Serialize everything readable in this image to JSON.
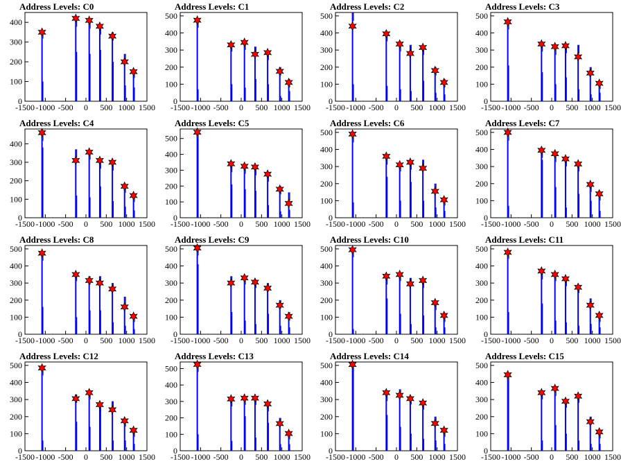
{
  "figure": {
    "x_ticks": [
      -1500,
      -1000,
      -500,
      0,
      500,
      1000,
      1500
    ],
    "x_tick_labels": [
      "-1500",
      "-1000",
      "-500",
      "0",
      "500",
      "1000",
      "1500"
    ],
    "colors": {
      "bars": "#0000ff",
      "markers": "#ff0000",
      "marker_edge": "#000000",
      "axes": "#000000"
    }
  },
  "chart_data": [
    {
      "type": "bar",
      "title": "Address Levels: C0",
      "xlim": [
        -1500,
        1500
      ],
      "ylim": [
        0,
        450
      ],
      "y_ticks": [
        0,
        100,
        200,
        300,
        400
      ],
      "peaks": {
        "x": [
          -1080,
          -250,
          80,
          340,
          650,
          950,
          1170
        ],
        "y": [
          350,
          420,
          410,
          380,
          330,
          200,
          150
        ]
      },
      "histogram": {
        "x": [
          -1080,
          -250,
          80,
          340,
          650,
          950,
          1170
        ],
        "y": [
          360,
          420,
          410,
          380,
          350,
          240,
          160
        ]
      },
      "minor_bars": {
        "x": [
          -1060,
          -230,
          100,
          360,
          670,
          970,
          1190
        ],
        "y": [
          100,
          250,
          240,
          260,
          200,
          80,
          70
        ]
      }
    },
    {
      "type": "bar",
      "title": "Address Levels: C1",
      "xlim": [
        -1500,
        1500
      ],
      "ylim": [
        0,
        520
      ],
      "y_ticks": [
        0,
        100,
        200,
        300,
        400,
        500
      ],
      "peaks": {
        "x": [
          -1080,
          -250,
          80,
          340,
          650,
          950,
          1170
        ],
        "y": [
          475,
          330,
          345,
          275,
          285,
          175,
          110
        ]
      },
      "histogram": {
        "x": [
          -1080,
          -250,
          80,
          340,
          650,
          950,
          1170
        ],
        "y": [
          480,
          340,
          350,
          320,
          290,
          200,
          130
        ]
      },
      "minor_bars": {
        "x": [
          -1060,
          -230,
          100,
          360,
          670,
          970,
          1190
        ],
        "y": [
          70,
          100,
          80,
          130,
          100,
          30,
          60
        ]
      }
    },
    {
      "type": "bar",
      "title": "Address Levels: C2",
      "xlim": [
        -1500,
        1500
      ],
      "ylim": [
        0,
        520
      ],
      "y_ticks": [
        0,
        100,
        200,
        300,
        400,
        500
      ],
      "peaks": {
        "x": [
          -1080,
          -250,
          80,
          340,
          650,
          950,
          1170
        ],
        "y": [
          440,
          395,
          335,
          280,
          315,
          180,
          110
        ]
      },
      "histogram": {
        "x": [
          -1080,
          -250,
          80,
          340,
          650,
          950,
          1170
        ],
        "y": [
          520,
          400,
          340,
          330,
          320,
          200,
          130
        ]
      },
      "minor_bars": {
        "x": [
          -1060,
          -230,
          100,
          360,
          670,
          970,
          1190
        ],
        "y": [
          100,
          90,
          70,
          60,
          120,
          50,
          40
        ]
      }
    },
    {
      "type": "bar",
      "title": "Address Levels: C3",
      "xlim": [
        -1500,
        1500
      ],
      "ylim": [
        0,
        520
      ],
      "y_ticks": [
        0,
        100,
        200,
        300,
        400,
        500
      ],
      "peaks": {
        "x": [
          -1080,
          -250,
          80,
          340,
          650,
          950,
          1170
        ],
        "y": [
          465,
          335,
          320,
          325,
          260,
          165,
          105
        ]
      },
      "histogram": {
        "x": [
          -1080,
          -250,
          80,
          340,
          650,
          950,
          1170
        ],
        "y": [
          470,
          340,
          320,
          330,
          330,
          200,
          120
        ]
      },
      "minor_bars": {
        "x": [
          -1060,
          -230,
          100,
          360,
          670,
          970,
          1190
        ],
        "y": [
          210,
          170,
          100,
          140,
          70,
          40,
          50
        ]
      }
    },
    {
      "type": "bar",
      "title": "Address Levels: C4",
      "xlim": [
        -1500,
        1500
      ],
      "ylim": [
        0,
        480
      ],
      "y_ticks": [
        0,
        100,
        200,
        300,
        400
      ],
      "peaks": {
        "x": [
          -1080,
          -250,
          80,
          340,
          650,
          950,
          1170
        ],
        "y": [
          460,
          310,
          355,
          310,
          300,
          170,
          120
        ]
      },
      "histogram": {
        "x": [
          -1080,
          -250,
          80,
          340,
          650,
          950,
          1170
        ],
        "y": [
          460,
          370,
          360,
          310,
          300,
          180,
          130
        ]
      },
      "minor_bars": {
        "x": [
          -1060,
          -230,
          100,
          360,
          670,
          970,
          1190
        ],
        "y": [
          380,
          120,
          110,
          170,
          90,
          60,
          40
        ]
      }
    },
    {
      "type": "bar",
      "title": "Address Levels: C5",
      "xlim": [
        -1500,
        1500
      ],
      "ylim": [
        0,
        560
      ],
      "y_ticks": [
        0,
        100,
        200,
        300,
        400,
        500
      ],
      "peaks": {
        "x": [
          -1080,
          -250,
          80,
          340,
          650,
          950,
          1170
        ],
        "y": [
          540,
          340,
          325,
          320,
          275,
          180,
          90
        ]
      },
      "histogram": {
        "x": [
          -1080,
          -250,
          80,
          340,
          650,
          950,
          1170
        ],
        "y": [
          540,
          340,
          330,
          320,
          280,
          200,
          160
        ]
      },
      "minor_bars": {
        "x": [
          -1060,
          -230,
          100,
          360,
          670,
          970,
          1190
        ],
        "y": [
          500,
          210,
          180,
          170,
          80,
          40,
          50
        ]
      }
    },
    {
      "type": "bar",
      "title": "Address Levels: C6",
      "xlim": [
        -1500,
        1500
      ],
      "ylim": [
        0,
        520
      ],
      "y_ticks": [
        0,
        100,
        200,
        300,
        400,
        500
      ],
      "peaks": {
        "x": [
          -1080,
          -250,
          80,
          340,
          650,
          950,
          1170
        ],
        "y": [
          490,
          360,
          310,
          325,
          290,
          155,
          105
        ]
      },
      "histogram": {
        "x": [
          -1080,
          -250,
          80,
          340,
          650,
          950,
          1170
        ],
        "y": [
          490,
          360,
          320,
          330,
          340,
          200,
          120
        ]
      },
      "minor_bars": {
        "x": [
          -1060,
          -230,
          100,
          360,
          670,
          970,
          1190
        ],
        "y": [
          90,
          240,
          100,
          210,
          100,
          60,
          40
        ]
      }
    },
    {
      "type": "bar",
      "title": "Address Levels: C7",
      "xlim": [
        -1500,
        1500
      ],
      "ylim": [
        0,
        520
      ],
      "y_ticks": [
        0,
        100,
        200,
        300,
        400,
        500
      ],
      "peaks": {
        "x": [
          -1080,
          -250,
          80,
          340,
          650,
          950,
          1170
        ],
        "y": [
          500,
          395,
          375,
          345,
          315,
          195,
          140
        ]
      },
      "histogram": {
        "x": [
          -1080,
          -250,
          80,
          340,
          650,
          950,
          1170
        ],
        "y": [
          500,
          400,
          375,
          350,
          320,
          200,
          150
        ]
      },
      "minor_bars": {
        "x": [
          -1060,
          -230,
          100,
          360,
          670,
          970,
          1190
        ],
        "y": [
          70,
          340,
          180,
          60,
          140,
          100,
          40
        ]
      }
    },
    {
      "type": "bar",
      "title": "Address Levels: C8",
      "xlim": [
        -1500,
        1500
      ],
      "ylim": [
        0,
        520
      ],
      "y_ticks": [
        0,
        100,
        200,
        300,
        400,
        500
      ],
      "peaks": {
        "x": [
          -1080,
          -250,
          80,
          340,
          650,
          950,
          1170
        ],
        "y": [
          475,
          350,
          315,
          300,
          265,
          160,
          105
        ]
      },
      "histogram": {
        "x": [
          -1080,
          -250,
          80,
          340,
          650,
          950,
          1170
        ],
        "y": [
          480,
          360,
          340,
          340,
          300,
          220,
          120
        ]
      },
      "minor_bars": {
        "x": [
          -1060,
          -230,
          100,
          360,
          670,
          970,
          1190
        ],
        "y": [
          160,
          100,
          140,
          140,
          70,
          50,
          30
        ]
      }
    },
    {
      "type": "bar",
      "title": "Address Levels: C9",
      "xlim": [
        -1500,
        1500
      ],
      "ylim": [
        0,
        520
      ],
      "y_ticks": [
        0,
        100,
        200,
        300,
        400,
        500
      ],
      "peaks": {
        "x": [
          -1080,
          -250,
          80,
          340,
          650,
          950,
          1170
        ],
        "y": [
          505,
          300,
          330,
          305,
          270,
          170,
          105
        ]
      },
      "histogram": {
        "x": [
          -1080,
          -250,
          80,
          340,
          650,
          950,
          1170
        ],
        "y": [
          510,
          340,
          340,
          320,
          300,
          200,
          130
        ]
      },
      "minor_bars": {
        "x": [
          -1060,
          -230,
          100,
          360,
          670,
          970,
          1190
        ],
        "y": [
          410,
          130,
          80,
          60,
          120,
          50,
          40
        ]
      }
    },
    {
      "type": "bar",
      "title": "Address Levels: C10",
      "xlim": [
        -1500,
        1500
      ],
      "ylim": [
        0,
        520
      ],
      "y_ticks": [
        0,
        100,
        200,
        300,
        400,
        500
      ],
      "peaks": {
        "x": [
          -1080,
          -250,
          80,
          340,
          650,
          950,
          1170
        ],
        "y": [
          495,
          340,
          350,
          295,
          315,
          185,
          110
        ]
      },
      "histogram": {
        "x": [
          -1080,
          -250,
          80,
          340,
          650,
          950,
          1170
        ],
        "y": [
          500,
          340,
          360,
          330,
          320,
          190,
          120
        ]
      },
      "minor_bars": {
        "x": [
          -1060,
          -230,
          100,
          360,
          670,
          970,
          1190
        ],
        "y": [
          30,
          210,
          120,
          60,
          110,
          40,
          40
        ]
      }
    },
    {
      "type": "bar",
      "title": "Address Levels: C11",
      "xlim": [
        -1500,
        1500
      ],
      "ylim": [
        0,
        520
      ],
      "y_ticks": [
        0,
        100,
        200,
        300,
        400,
        500
      ],
      "peaks": {
        "x": [
          -1080,
          -250,
          80,
          340,
          650,
          950,
          1170
        ],
        "y": [
          480,
          370,
          350,
          325,
          275,
          170,
          110
        ]
      },
      "histogram": {
        "x": [
          -1080,
          -250,
          80,
          340,
          650,
          950,
          1170
        ],
        "y": [
          490,
          370,
          360,
          330,
          290,
          210,
          120
        ]
      },
      "minor_bars": {
        "x": [
          -1060,
          -230,
          100,
          360,
          670,
          970,
          1190
        ],
        "y": [
          130,
          180,
          80,
          70,
          50,
          60,
          40
        ]
      }
    },
    {
      "type": "bar",
      "title": "Address Levels: C12",
      "xlim": [
        -1500,
        1500
      ],
      "ylim": [
        0,
        520
      ],
      "y_ticks": [
        0,
        100,
        200,
        300,
        400,
        500
      ],
      "peaks": {
        "x": [
          -1080,
          -250,
          80,
          340,
          650,
          950,
          1170
        ],
        "y": [
          485,
          305,
          340,
          270,
          240,
          175,
          120
        ]
      },
      "histogram": {
        "x": [
          -1080,
          -250,
          80,
          340,
          650,
          950,
          1170
        ],
        "y": [
          490,
          330,
          350,
          280,
          290,
          190,
          130
        ]
      },
      "minor_bars": {
        "x": [
          -1060,
          -230,
          100,
          360,
          670,
          970,
          1190
        ],
        "y": [
          60,
          170,
          140,
          240,
          60,
          60,
          40
        ]
      }
    },
    {
      "type": "bar",
      "title": "Address Levels: C13",
      "xlim": [
        -1500,
        1500
      ],
      "ylim": [
        0,
        540
      ],
      "y_ticks": [
        0,
        100,
        200,
        300,
        400,
        500
      ],
      "peaks": {
        "x": [
          -1080,
          -250,
          80,
          340,
          650,
          950,
          1170
        ],
        "y": [
          525,
          315,
          320,
          320,
          285,
          165,
          105
        ]
      },
      "histogram": {
        "x": [
          -1080,
          -250,
          80,
          340,
          650,
          950,
          1170
        ],
        "y": [
          530,
          320,
          330,
          330,
          290,
          200,
          120
        ]
      },
      "minor_bars": {
        "x": [
          -1060,
          -230,
          100,
          360,
          670,
          970,
          1190
        ],
        "y": [
          100,
          60,
          210,
          80,
          170,
          40,
          40
        ]
      }
    },
    {
      "type": "bar",
      "title": "Address Levels: C14",
      "xlim": [
        -1500,
        1500
      ],
      "ylim": [
        0,
        520
      ],
      "y_ticks": [
        0,
        100,
        200,
        300,
        400,
        500
      ],
      "peaks": {
        "x": [
          -1080,
          -250,
          80,
          340,
          650,
          950,
          1170
        ],
        "y": [
          505,
          340,
          325,
          305,
          280,
          160,
          120
        ]
      },
      "histogram": {
        "x": [
          -1080,
          -250,
          80,
          340,
          650,
          950,
          1170
        ],
        "y": [
          510,
          340,
          360,
          320,
          290,
          200,
          130
        ]
      },
      "minor_bars": {
        "x": [
          -1060,
          -230,
          100,
          360,
          670,
          970,
          1190
        ],
        "y": [
          490,
          210,
          140,
          100,
          70,
          60,
          40
        ]
      }
    },
    {
      "type": "bar",
      "title": "Address Levels: C15",
      "xlim": [
        -1500,
        1500
      ],
      "ylim": [
        0,
        520
      ],
      "y_ticks": [
        0,
        100,
        200,
        300,
        400,
        500
      ],
      "peaks": {
        "x": [
          -1080,
          -250,
          80,
          340,
          650,
          950,
          1170
        ],
        "y": [
          445,
          340,
          365,
          290,
          320,
          170,
          110
        ]
      },
      "histogram": {
        "x": [
          -1080,
          -250,
          80,
          340,
          650,
          950,
          1170
        ],
        "y": [
          450,
          350,
          370,
          300,
          330,
          200,
          120
        ]
      },
      "minor_bars": {
        "x": [
          -1060,
          -230,
          100,
          360,
          670,
          970,
          1190
        ],
        "y": [
          410,
          60,
          150,
          100,
          60,
          40,
          40
        ]
      }
    }
  ]
}
